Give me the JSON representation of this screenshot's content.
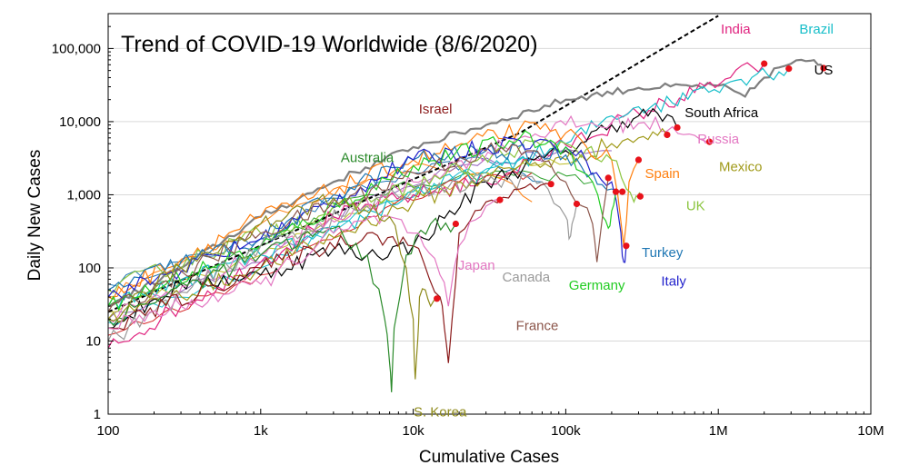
{
  "chart_data": {
    "type": "line",
    "title": "Trend of COVID-19 Worldwide (8/6/2020)",
    "xlabel": "Cumulative Cases",
    "ylabel": "Daily New Cases",
    "x_scale": "log",
    "y_scale": "log",
    "xlim": [
      100,
      10000000
    ],
    "ylim": [
      1,
      300000
    ],
    "x_ticks": [
      {
        "value": 100,
        "label": "100"
      },
      {
        "value": 1000,
        "label": "1k"
      },
      {
        "value": 10000,
        "label": "10k"
      },
      {
        "value": 100000,
        "label": "100k"
      },
      {
        "value": 1000000,
        "label": "1M"
      },
      {
        "value": 10000000,
        "label": "10M"
      }
    ],
    "y_ticks": [
      {
        "value": 1,
        "label": "1"
      },
      {
        "value": 10,
        "label": "10"
      },
      {
        "value": 100,
        "label": "100"
      },
      {
        "value": 1000,
        "label": "1,000"
      },
      {
        "value": 10000,
        "label": "10,000"
      },
      {
        "value": 100000,
        "label": "100,000"
      }
    ],
    "grid": "horizontal",
    "reference_line": {
      "style": "dashed",
      "color": "#000000",
      "points": [
        [
          100,
          25
        ],
        [
          50000,
          7000
        ],
        [
          1000000,
          280000
        ]
      ]
    },
    "series": [
      {
        "name": "US",
        "color": "#7f7f7f",
        "label_color": "#000000",
        "label_at": [
          4900000,
          44000
        ],
        "points": [
          [
            100,
            30
          ],
          [
            300,
            100
          ],
          [
            1000,
            500
          ],
          [
            3000,
            1500
          ],
          [
            10000,
            4500
          ],
          [
            30000,
            9000
          ],
          [
            100000,
            20000
          ],
          [
            300000,
            29000
          ],
          [
            1000000,
            31000
          ],
          [
            1500000,
            22000
          ],
          [
            2000000,
            40000
          ],
          [
            2500000,
            55000
          ],
          [
            3000000,
            62000
          ],
          [
            3500000,
            70000
          ],
          [
            4000000,
            68000
          ],
          [
            4500000,
            60000
          ],
          [
            4900000,
            54000
          ]
        ]
      },
      {
        "name": "India",
        "color": "#e0237f",
        "label_color": "#e0237f",
        "label_at": [
          1300000,
          160000
        ],
        "points": [
          [
            100,
            8
          ],
          [
            300,
            30
          ],
          [
            1000,
            120
          ],
          [
            3000,
            500
          ],
          [
            10000,
            1000
          ],
          [
            30000,
            1500
          ],
          [
            100000,
            4800
          ],
          [
            300000,
            13000
          ],
          [
            700000,
            25000
          ],
          [
            1200000,
            40000
          ],
          [
            2000000,
            62000
          ]
        ]
      },
      {
        "name": "Brazil",
        "color": "#17bec9",
        "label_color": "#17bec9",
        "label_at": [
          4400000,
          160000
        ],
        "points": [
          [
            100,
            30
          ],
          [
            1000,
            150
          ],
          [
            3000,
            300
          ],
          [
            10000,
            1100
          ],
          [
            30000,
            2000
          ],
          [
            100000,
            5000
          ],
          [
            200000,
            12000
          ],
          [
            300000,
            16000
          ],
          [
            500000,
            18000
          ],
          [
            800000,
            30000
          ],
          [
            1200000,
            35000
          ],
          [
            1800000,
            45000
          ],
          [
            2500000,
            48000
          ],
          [
            2900000,
            53000
          ]
        ]
      },
      {
        "name": "South Africa",
        "color": "#000000",
        "label_color": "#000000",
        "label_at": [
          1050000,
          11500
        ],
        "points": [
          [
            100,
            15
          ],
          [
            300,
            60
          ],
          [
            1000,
            80
          ],
          [
            3000,
            180
          ],
          [
            5000,
            150
          ],
          [
            10000,
            200
          ],
          [
            30000,
            1500
          ],
          [
            100000,
            4000
          ],
          [
            200000,
            9000
          ],
          [
            300000,
            12000
          ],
          [
            400000,
            13000
          ],
          [
            538000,
            8300
          ]
        ]
      },
      {
        "name": "Russia",
        "color": "#e377c2",
        "label_color": "#e377c2",
        "label_at": [
          1000000,
          5000
        ],
        "points": [
          [
            100,
            20
          ],
          [
            1000,
            150
          ],
          [
            10000,
            1500
          ],
          [
            50000,
            6000
          ],
          [
            100000,
            9000
          ],
          [
            300000,
            9500
          ],
          [
            500000,
            8500
          ],
          [
            700000,
            6500
          ],
          [
            875000,
            5300
          ]
        ]
      },
      {
        "name": "Mexico",
        "color": "#a09a1a",
        "label_color": "#a09a1a",
        "label_at": [
          1400000,
          2100
        ],
        "points": [
          [
            100,
            20
          ],
          [
            1000,
            100
          ],
          [
            10000,
            800
          ],
          [
            50000,
            2500
          ],
          [
            100000,
            3000
          ],
          [
            200000,
            5000
          ],
          [
            300000,
            6000
          ],
          [
            400000,
            6500
          ],
          [
            462000,
            6600
          ]
        ]
      },
      {
        "name": "Spain",
        "color": "#ff7f0e",
        "label_color": "#ff7f0e",
        "label_at": [
          430000,
          1700
        ],
        "points": [
          [
            100,
            40
          ],
          [
            1000,
            500
          ],
          [
            10000,
            3000
          ],
          [
            50000,
            8000
          ],
          [
            100000,
            7000
          ],
          [
            200000,
            3000
          ],
          [
            240000,
            200
          ],
          [
            260000,
            1500
          ],
          [
            300000,
            3000
          ]
        ]
      },
      {
        "name": "UK",
        "color": "#8bc53f",
        "label_color": "#8bc53f",
        "label_at": [
          710000,
          610
        ],
        "points": [
          [
            100,
            50
          ],
          [
            1000,
            300
          ],
          [
            10000,
            1300
          ],
          [
            50000,
            4500
          ],
          [
            100000,
            5000
          ],
          [
            200000,
            3000
          ],
          [
            250000,
            1200
          ],
          [
            280000,
            800
          ],
          [
            300000,
            900
          ],
          [
            308000,
            950
          ]
        ]
      },
      {
        "name": "Turkey",
        "color": "#1f77b4",
        "label_color": "#1f77b4",
        "label_at": [
          430000,
          140
        ],
        "points": [
          [
            100,
            50
          ],
          [
            300,
            120
          ],
          [
            1000,
            250
          ],
          [
            3000,
            1000
          ],
          [
            10000,
            3000
          ],
          [
            30000,
            4000
          ],
          [
            100000,
            3500
          ],
          [
            150000,
            2000
          ],
          [
            200000,
            1200
          ],
          [
            235000,
            1100
          ]
        ]
      },
      {
        "name": "Italy",
        "color": "#2222cc",
        "label_color": "#2222cc",
        "label_at": [
          510000,
          57
        ],
        "points": [
          [
            100,
            40
          ],
          [
            1000,
            250
          ],
          [
            10000,
            3000
          ],
          [
            50000,
            5500
          ],
          [
            100000,
            4500
          ],
          [
            200000,
            1500
          ],
          [
            230000,
            300
          ],
          [
            240000,
            120
          ],
          [
            249000,
            200
          ]
        ]
      },
      {
        "name": "Germany",
        "color": "#22cc22",
        "label_color": "#22cc22",
        "label_at": [
          160000,
          50
        ],
        "points": [
          [
            100,
            30
          ],
          [
            1000,
            200
          ],
          [
            10000,
            2500
          ],
          [
            50000,
            6000
          ],
          [
            100000,
            4500
          ],
          [
            150000,
            1500
          ],
          [
            175000,
            500
          ],
          [
            190000,
            350
          ],
          [
            200000,
            600
          ],
          [
            213000,
            1100
          ]
        ]
      },
      {
        "name": "Canada",
        "color": "#999999",
        "label_color": "#999999",
        "label_at": [
          55000,
          65
        ],
        "points": [
          [
            100,
            10
          ],
          [
            1000,
            200
          ],
          [
            10000,
            1200
          ],
          [
            30000,
            1500
          ],
          [
            70000,
            1500
          ],
          [
            100000,
            500
          ],
          [
            105000,
            250
          ],
          [
            110000,
            400
          ],
          [
            118000,
            750
          ]
        ]
      },
      {
        "name": "France",
        "color": "#8c564b",
        "label_color": "#8c564b",
        "label_at": [
          65000,
          14
        ],
        "points": [
          [
            100,
            25
          ],
          [
            1000,
            300
          ],
          [
            10000,
            2000
          ],
          [
            30000,
            4000
          ],
          [
            60000,
            4000
          ],
          [
            100000,
            1500
          ],
          [
            150000,
            400
          ],
          [
            160000,
            120
          ],
          [
            190000,
            1700
          ]
        ]
      },
      {
        "name": "Israel",
        "color": "#8b1a1a",
        "label_color": "#8b1a1a",
        "label_at": [
          14000,
          13000
        ],
        "points": [
          [
            100,
            15
          ],
          [
            1000,
            100
          ],
          [
            5000,
            300
          ],
          [
            10000,
            200
          ],
          [
            15000,
            40
          ],
          [
            16000,
            15
          ],
          [
            17000,
            5
          ],
          [
            18000,
            20
          ],
          [
            20000,
            300
          ],
          [
            30000,
            800
          ],
          [
            50000,
            1200
          ],
          [
            80000,
            1400
          ]
        ]
      },
      {
        "name": "Australia",
        "color": "#2a8a2a",
        "label_color": "#2a8a2a",
        "label_at": [
          5000,
          2800
        ],
        "points": [
          [
            100,
            20
          ],
          [
            1000,
            150
          ],
          [
            3000,
            350
          ],
          [
            5000,
            150
          ],
          [
            6500,
            20
          ],
          [
            7000,
            5
          ],
          [
            7200,
            2
          ],
          [
            7500,
            15
          ],
          [
            9000,
            150
          ],
          [
            13000,
            400
          ],
          [
            19000,
            400
          ]
        ]
      },
      {
        "name": "Japan",
        "color": "#e377c2",
        "label_color": "#e377c2",
        "label_at": [
          26000,
          95
        ],
        "points": [
          [
            100,
            15
          ],
          [
            300,
            30
          ],
          [
            1000,
            60
          ],
          [
            3000,
            300
          ],
          [
            7000,
            500
          ],
          [
            10000,
            300
          ],
          [
            15000,
            80
          ],
          [
            17000,
            30
          ],
          [
            20000,
            200
          ],
          [
            30000,
            700
          ],
          [
            37000,
            850
          ]
        ]
      },
      {
        "name": "S. Korea",
        "color": "#8e8a1a",
        "label_color": "#8e8a1a",
        "label_at": [
          15000,
          0.93
        ],
        "points": [
          [
            100,
            20
          ],
          [
            300,
            100
          ],
          [
            1000,
            400
          ],
          [
            3000,
            900
          ],
          [
            7000,
            500
          ],
          [
            9000,
            100
          ],
          [
            10000,
            20
          ],
          [
            10300,
            3
          ],
          [
            10700,
            10
          ],
          [
            11000,
            40
          ],
          [
            12000,
            50
          ],
          [
            13000,
            30
          ],
          [
            14300,
            38
          ]
        ]
      }
    ],
    "background_trajectories": [
      {
        "color": "#1f77b4",
        "points": [
          [
            100,
            60
          ],
          [
            1000,
            250
          ],
          [
            3000,
            900
          ],
          [
            10000,
            2000
          ],
          [
            30000,
            3000
          ],
          [
            70000,
            1500
          ]
        ]
      },
      {
        "color": "#ff7f0e",
        "points": [
          [
            100,
            40
          ],
          [
            1000,
            400
          ],
          [
            3000,
            1200
          ],
          [
            10000,
            2500
          ],
          [
            30000,
            2000
          ],
          [
            60000,
            800
          ]
        ]
      },
      {
        "color": "#2ca02c",
        "points": [
          [
            100,
            30
          ],
          [
            1000,
            200
          ],
          [
            5000,
            1000
          ],
          [
            20000,
            1800
          ],
          [
            60000,
            2000
          ],
          [
            150000,
            1500
          ]
        ]
      },
      {
        "color": "#9467bd",
        "points": [
          [
            100,
            20
          ],
          [
            1000,
            120
          ],
          [
            5000,
            900
          ],
          [
            20000,
            2500
          ],
          [
            80000,
            3500
          ],
          [
            200000,
            4000
          ]
        ]
      },
      {
        "color": "#bcbd22",
        "points": [
          [
            100,
            25
          ],
          [
            1000,
            150
          ],
          [
            5000,
            700
          ],
          [
            20000,
            1500
          ],
          [
            60000,
            2500
          ],
          [
            120000,
            3000
          ]
        ]
      },
      {
        "color": "#17becf",
        "points": [
          [
            100,
            18
          ],
          [
            1000,
            100
          ],
          [
            5000,
            600
          ],
          [
            20000,
            2000
          ],
          [
            60000,
            3000
          ]
        ]
      },
      {
        "color": "#d62728",
        "points": [
          [
            100,
            12
          ],
          [
            1000,
            80
          ],
          [
            5000,
            500
          ],
          [
            20000,
            1500
          ],
          [
            60000,
            2000
          ]
        ]
      }
    ]
  }
}
